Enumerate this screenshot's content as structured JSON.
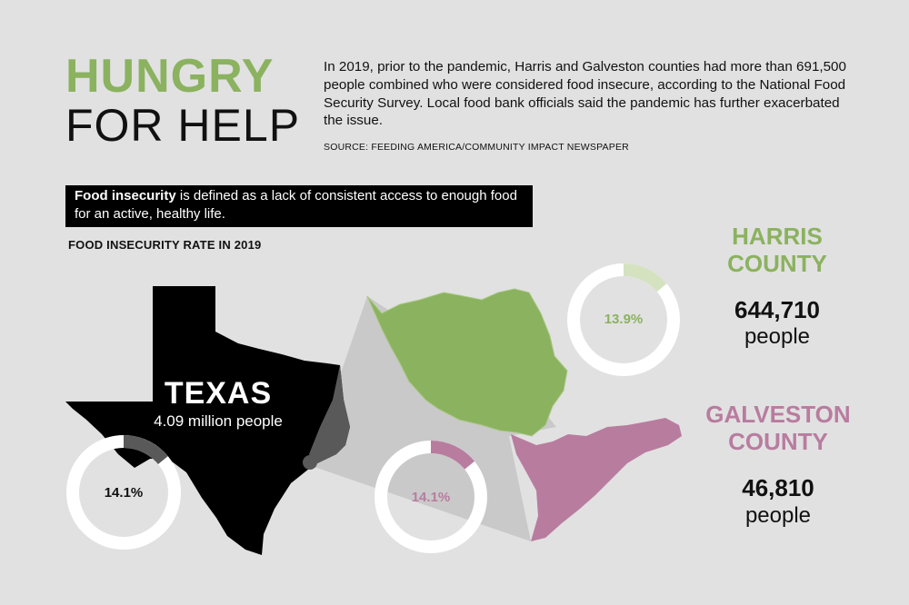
{
  "header": {
    "title_line1": "HUNGRY",
    "title_line2": "FOR HELP",
    "intro": "In 2019, prior to the pandemic, Harris and Galveston counties had more than 691,500 people combined who were considered food insecure, according to the National Food Security Survey. Local food bank officials said the pandemic has further exacerbated the issue.",
    "source": "SOURCE: FEEDING AMERICA/COMMUNITY IMPACT NEWSPAPER"
  },
  "definition": {
    "term": "Food insecurity",
    "text": " is defined as a lack of consistent access to enough food for an active, healthy life."
  },
  "rate_heading": "FOOD INSECURITY RATE IN 2019",
  "texas": {
    "name": "TEXAS",
    "population": "4.09 million people",
    "rate_label": "14.1%",
    "rate": 14.1
  },
  "harris": {
    "name_line1": "HARRIS",
    "name_line2": "COUNTY",
    "count": "644,710",
    "unit": "people",
    "rate_label": "13.9%",
    "rate": 13.9
  },
  "galveston": {
    "name_line1": "GALVESTON",
    "name_line2": "COUNTY",
    "count": "46,810",
    "unit": "people",
    "rate_label": "14.1%",
    "rate": 14.1
  },
  "colors": {
    "harris": "#8bb25f",
    "harris_light": "#d4e2c0",
    "galveston": "#b87c9f",
    "texas": "#000000",
    "texas_ring": "#595959",
    "ring_base": "#ffffff"
  }
}
